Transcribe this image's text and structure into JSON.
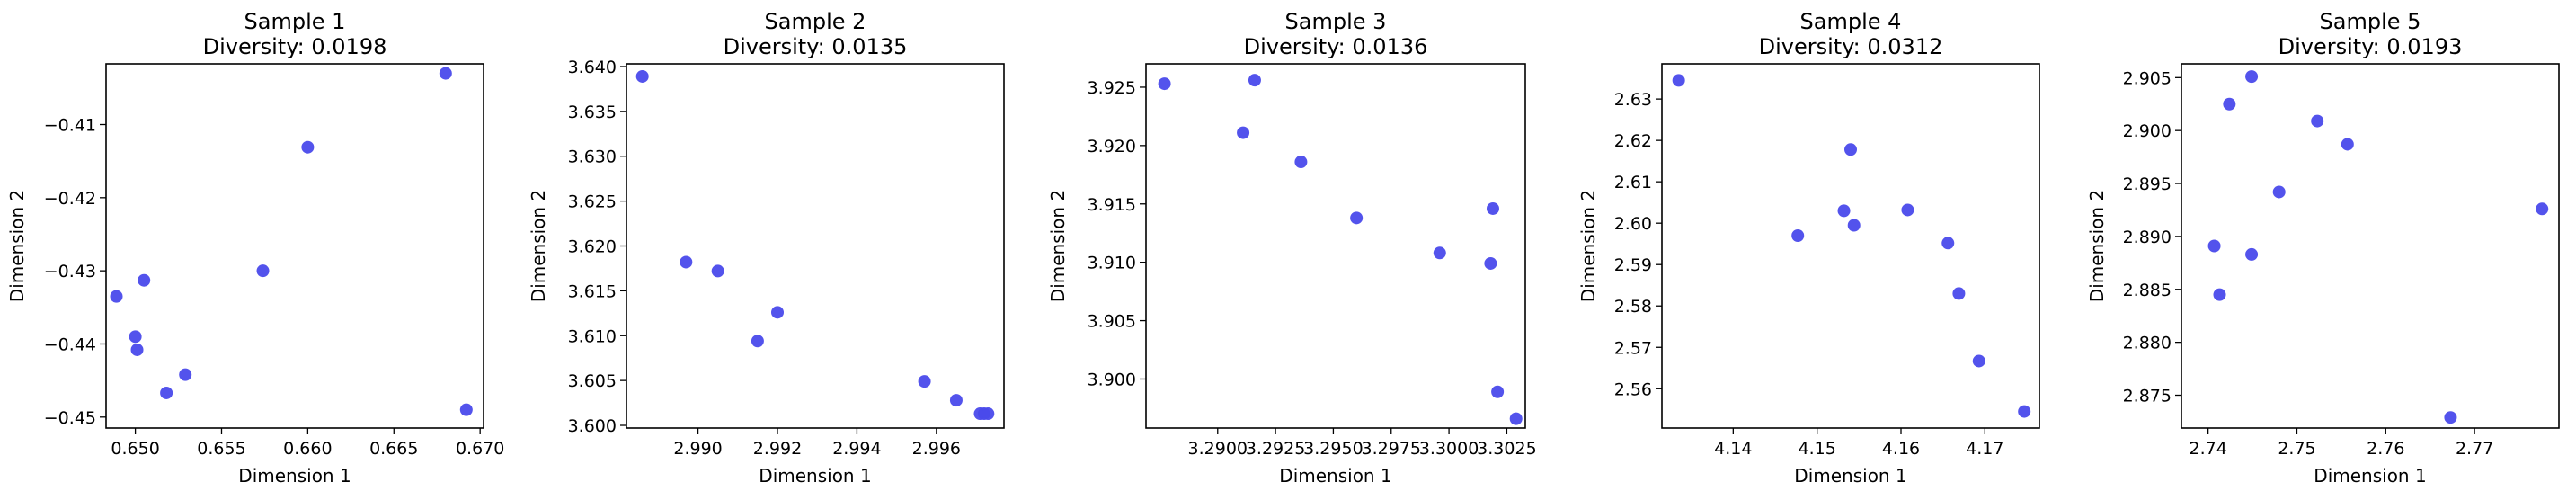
{
  "marker_color": "#4a4aeb",
  "chart_data": [
    {
      "type": "scatter",
      "title": "Sample 1",
      "subtitle": "Diversity: 0.0198",
      "xlabel": "Dimension 1",
      "ylabel": "Dimension 2",
      "xlim": [
        0.6483,
        0.6702
      ],
      "ylim": [
        -0.4515,
        -0.4017
      ],
      "xticks": [
        {
          "v": 0.65,
          "label": "0.650"
        },
        {
          "v": 0.655,
          "label": "0.655"
        },
        {
          "v": 0.66,
          "label": "0.660"
        },
        {
          "v": 0.665,
          "label": "0.665"
        },
        {
          "v": 0.67,
          "label": "0.670"
        }
      ],
      "yticks": [
        {
          "v": -0.41,
          "label": "−0.41"
        },
        {
          "v": -0.42,
          "label": "−0.42"
        },
        {
          "v": -0.43,
          "label": "−0.43"
        },
        {
          "v": -0.44,
          "label": "−0.44"
        },
        {
          "v": -0.45,
          "label": "−0.45"
        }
      ],
      "points": [
        {
          "x": 0.668,
          "y": -0.403
        },
        {
          "x": 0.66,
          "y": -0.4131
        },
        {
          "x": 0.6574,
          "y": -0.43
        },
        {
          "x": 0.6505,
          "y": -0.4313
        },
        {
          "x": 0.6489,
          "y": -0.4335
        },
        {
          "x": 0.65,
          "y": -0.439
        },
        {
          "x": 0.6501,
          "y": -0.4408
        },
        {
          "x": 0.6529,
          "y": -0.4442
        },
        {
          "x": 0.6518,
          "y": -0.4467
        },
        {
          "x": 0.6692,
          "y": -0.449
        }
      ]
    },
    {
      "type": "scatter",
      "title": "Sample 2",
      "subtitle": "Diversity: 0.0135",
      "xlabel": "Dimension 1",
      "ylabel": "Dimension 2",
      "xlim": [
        2.9882,
        2.9977
      ],
      "ylim": [
        3.5997,
        3.6403
      ],
      "xticks": [
        {
          "v": 2.99,
          "label": "2.990"
        },
        {
          "v": 2.992,
          "label": "2.992"
        },
        {
          "v": 2.994,
          "label": "2.994"
        },
        {
          "v": 2.996,
          "label": "2.996"
        }
      ],
      "yticks": [
        {
          "v": 3.6,
          "label": "3.600"
        },
        {
          "v": 3.605,
          "label": "3.605"
        },
        {
          "v": 3.61,
          "label": "3.610"
        },
        {
          "v": 3.615,
          "label": "3.615"
        },
        {
          "v": 3.62,
          "label": "3.620"
        },
        {
          "v": 3.625,
          "label": "3.625"
        },
        {
          "v": 3.63,
          "label": "3.630"
        },
        {
          "v": 3.635,
          "label": "3.635"
        },
        {
          "v": 3.64,
          "label": "3.640"
        }
      ],
      "points": [
        {
          "x": 2.9886,
          "y": 3.6389
        },
        {
          "x": 2.9897,
          "y": 3.6182
        },
        {
          "x": 2.9905,
          "y": 3.6172
        },
        {
          "x": 2.992,
          "y": 3.6126
        },
        {
          "x": 2.9915,
          "y": 3.6094
        },
        {
          "x": 2.9957,
          "y": 3.6049
        },
        {
          "x": 2.9965,
          "y": 3.6028
        },
        {
          "x": 2.9971,
          "y": 3.6013
        },
        {
          "x": 2.9972,
          "y": 3.6013
        },
        {
          "x": 2.9973,
          "y": 3.6013
        }
      ]
    },
    {
      "type": "scatter",
      "title": "Sample 3",
      "subtitle": "Diversity: 0.0136",
      "xlabel": "Dimension 1",
      "ylabel": "Dimension 2",
      "xlim": [
        3.2869,
        3.3033
      ],
      "ylim": [
        3.8958,
        3.927
      ],
      "xticks": [
        {
          "v": 3.29,
          "label": "3.2900"
        },
        {
          "v": 3.2925,
          "label": "3.2925"
        },
        {
          "v": 3.295,
          "label": "3.2950"
        },
        {
          "v": 3.2975,
          "label": "3.2975"
        },
        {
          "v": 3.3,
          "label": "3.3000"
        },
        {
          "v": 3.3025,
          "label": "3.3025"
        }
      ],
      "yticks": [
        {
          "v": 3.9,
          "label": "3.900"
        },
        {
          "v": 3.905,
          "label": "3.905"
        },
        {
          "v": 3.91,
          "label": "3.910"
        },
        {
          "v": 3.915,
          "label": "3.915"
        },
        {
          "v": 3.92,
          "label": "3.920"
        },
        {
          "v": 3.925,
          "label": "3.925"
        }
      ],
      "points": [
        {
          "x": 3.2877,
          "y": 3.9253
        },
        {
          "x": 3.2916,
          "y": 3.9256
        },
        {
          "x": 3.2911,
          "y": 3.9211
        },
        {
          "x": 3.2936,
          "y": 3.9186
        },
        {
          "x": 3.296,
          "y": 3.9138
        },
        {
          "x": 3.2996,
          "y": 3.9108
        },
        {
          "x": 3.3019,
          "y": 3.9146
        },
        {
          "x": 3.3018,
          "y": 3.9099
        },
        {
          "x": 3.3021,
          "y": 3.8989
        },
        {
          "x": 3.3029,
          "y": 3.8966
        }
      ]
    },
    {
      "type": "scatter",
      "title": "Sample 4",
      "subtitle": "Diversity: 0.0312",
      "xlabel": "Dimension 1",
      "ylabel": "Dimension 2",
      "xlim": [
        4.1315,
        4.1765
      ],
      "ylim": [
        2.5505,
        2.6385
      ],
      "xticks": [
        {
          "v": 4.14,
          "label": "4.14"
        },
        {
          "v": 4.15,
          "label": "4.15"
        },
        {
          "v": 4.16,
          "label": "4.16"
        },
        {
          "v": 4.17,
          "label": "4.17"
        }
      ],
      "yticks": [
        {
          "v": 2.56,
          "label": "2.56"
        },
        {
          "v": 2.57,
          "label": "2.57"
        },
        {
          "v": 2.58,
          "label": "2.58"
        },
        {
          "v": 2.59,
          "label": "2.59"
        },
        {
          "v": 2.6,
          "label": "2.60"
        },
        {
          "v": 2.61,
          "label": "2.61"
        },
        {
          "v": 2.62,
          "label": "2.62"
        },
        {
          "v": 2.63,
          "label": "2.63"
        }
      ],
      "points": [
        {
          "x": 4.1335,
          "y": 2.6345
        },
        {
          "x": 4.154,
          "y": 2.6178
        },
        {
          "x": 4.1532,
          "y": 2.603
        },
        {
          "x": 4.1608,
          "y": 2.6032
        },
        {
          "x": 4.1544,
          "y": 2.5995
        },
        {
          "x": 4.1477,
          "y": 2.597
        },
        {
          "x": 4.1656,
          "y": 2.5952
        },
        {
          "x": 4.1669,
          "y": 2.583
        },
        {
          "x": 4.1693,
          "y": 2.5667
        },
        {
          "x": 4.1747,
          "y": 2.5545
        }
      ]
    },
    {
      "type": "scatter",
      "title": "Sample 5",
      "subtitle": "Diversity: 0.0193",
      "xlabel": "Dimension 1",
      "ylabel": "Dimension 2",
      "xlim": [
        2.737,
        2.7795
      ],
      "ylim": [
        2.8719,
        2.9063
      ],
      "xticks": [
        {
          "v": 2.74,
          "label": "2.74"
        },
        {
          "v": 2.75,
          "label": "2.75"
        },
        {
          "v": 2.76,
          "label": "2.76"
        },
        {
          "v": 2.77,
          "label": "2.77"
        }
      ],
      "yticks": [
        {
          "v": 2.875,
          "label": "2.875"
        },
        {
          "v": 2.88,
          "label": "2.880"
        },
        {
          "v": 2.885,
          "label": "2.885"
        },
        {
          "v": 2.89,
          "label": "2.890"
        },
        {
          "v": 2.895,
          "label": "2.895"
        },
        {
          "v": 2.9,
          "label": "2.900"
        },
        {
          "v": 2.905,
          "label": "2.905"
        }
      ],
      "points": [
        {
          "x": 2.7449,
          "y": 2.9051
        },
        {
          "x": 2.7424,
          "y": 2.9025
        },
        {
          "x": 2.7523,
          "y": 2.9009
        },
        {
          "x": 2.7557,
          "y": 2.8987
        },
        {
          "x": 2.748,
          "y": 2.8942
        },
        {
          "x": 2.7776,
          "y": 2.8926
        },
        {
          "x": 2.7407,
          "y": 2.8891
        },
        {
          "x": 2.7449,
          "y": 2.8883
        },
        {
          "x": 2.7413,
          "y": 2.8845
        },
        {
          "x": 2.7673,
          "y": 2.8729
        }
      ]
    }
  ]
}
